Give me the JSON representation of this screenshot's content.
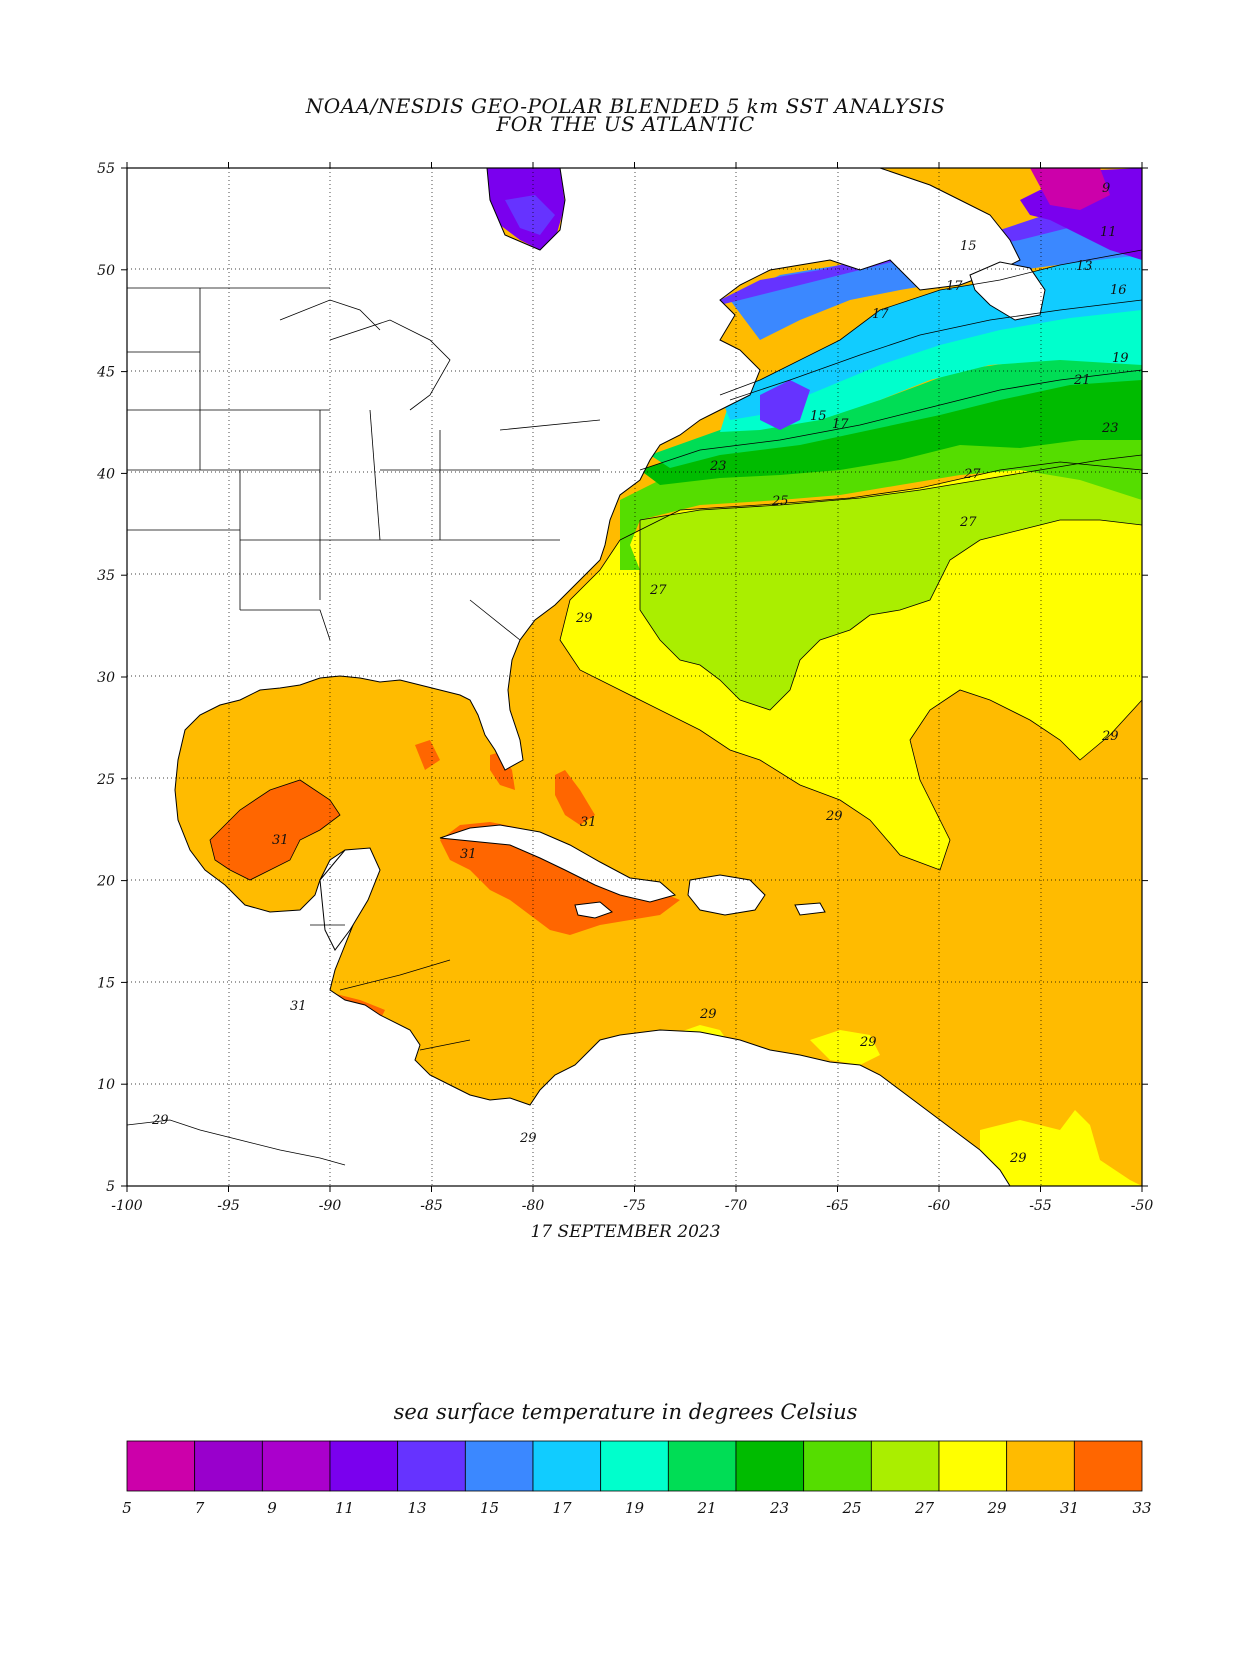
{
  "title_line1": "NOAA/NESDIS GEO-POLAR BLENDED 5 km SST ANALYSIS",
  "title_line2": "FOR THE US ATLANTIC",
  "date": "17 SEPTEMBER 2023",
  "colorbar_title": "sea surface temperature in degrees Celsius",
  "lat_ticks": [
    "55",
    "50",
    "45",
    "40",
    "35",
    "30",
    "25",
    "20",
    "15",
    "10",
    "5"
  ],
  "lon_ticks": [
    "-100",
    "-95",
    "-90",
    "-85",
    "-80",
    "-75",
    "-70",
    "-65",
    "-60",
    "-55",
    "-50"
  ],
  "extent": {
    "lon_min": -100,
    "lon_max": -50,
    "lat_min": 5,
    "lat_max": 55
  },
  "colorbar": {
    "ticks": [
      "5",
      "7",
      "9",
      "11",
      "13",
      "15",
      "17",
      "19",
      "21",
      "23",
      "25",
      "27",
      "29",
      "31",
      "33"
    ],
    "colors": [
      "#cc00aa",
      "#9900cc",
      "#aa00cc",
      "#7a00ee",
      "#6633ff",
      "#3b88ff",
      "#11ccff",
      "#00ffcc",
      "#00dd55",
      "#00bb00",
      "#55dd00",
      "#aaee00",
      "#ffff00",
      "#ffbb00",
      "#ff6600"
    ]
  },
  "contour_labels": [
    "9",
    "11",
    "13",
    "15",
    "16",
    "17",
    "19",
    "21",
    "23",
    "25",
    "27",
    "29",
    "31"
  ]
}
